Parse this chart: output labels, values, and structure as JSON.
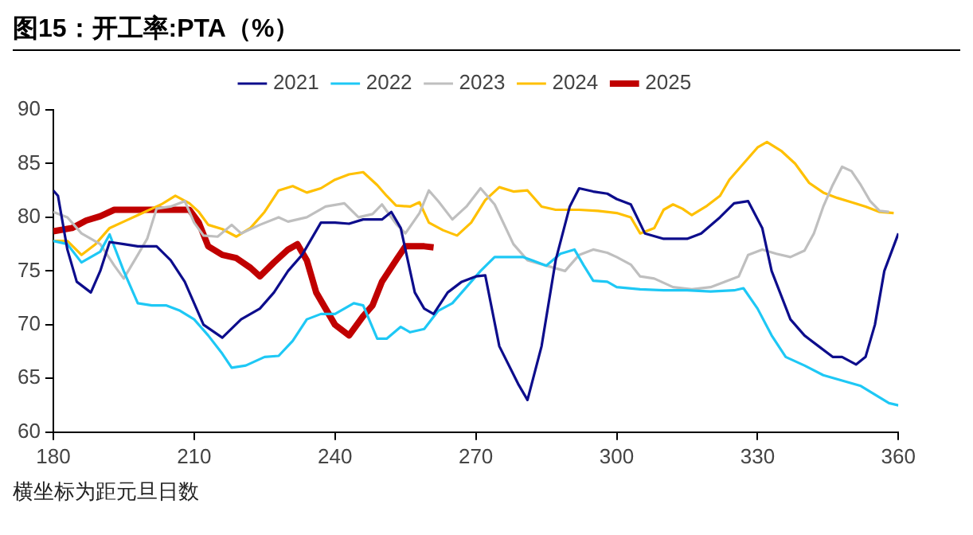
{
  "chart_data": {
    "type": "line",
    "title": "图15：开工率:PTA（%）",
    "annotations": [
      "横坐标为距元旦日数"
    ],
    "xlim": [
      180,
      360
    ],
    "xticks": [
      180,
      210,
      240,
      270,
      300,
      330,
      360
    ],
    "ylim": [
      60,
      90
    ],
    "yticks": [
      60,
      65,
      70,
      75,
      80,
      85,
      90
    ],
    "grid": false,
    "legend": "top",
    "marker": "none",
    "line_style": "solid",
    "series": [
      {
        "name": "2021",
        "color": "#0d0d8c",
        "x": [
          180,
          181,
          183,
          185,
          188,
          190,
          192,
          195,
          198,
          202,
          205,
          208,
          212,
          216,
          220,
          224,
          227,
          230,
          233,
          237,
          240,
          243,
          246,
          250,
          252,
          254,
          257,
          259,
          261,
          264,
          267,
          270,
          272,
          275,
          279,
          281,
          284,
          287,
          290,
          292,
          295,
          298,
          300,
          303,
          306,
          310,
          315,
          318,
          322,
          325,
          328,
          331,
          333,
          337,
          340,
          343,
          346,
          348,
          351,
          353,
          355,
          357,
          360
        ],
        "values": [
          82.5,
          82,
          77,
          74,
          73,
          75,
          77.7,
          77.5,
          77.3,
          77.3,
          76,
          74,
          70,
          68.8,
          70.5,
          71.5,
          73,
          75,
          76.5,
          79.5,
          79.5,
          79.4,
          79.8,
          79.8,
          80.5,
          79,
          73,
          71.5,
          71,
          73,
          74,
          74.5,
          74.6,
          68,
          64.5,
          63,
          68,
          76,
          81,
          82.7,
          82.4,
          82.2,
          81.7,
          81.2,
          78.5,
          78,
          78,
          78.5,
          80,
          81.3,
          81.5,
          79,
          75,
          70.5,
          69,
          68,
          67,
          67,
          66.3,
          67,
          70,
          75,
          78.5
        ]
      },
      {
        "name": "2022",
        "color": "#1ec8f5",
        "x": [
          180,
          183,
          186,
          190,
          192,
          195,
          198,
          201,
          204,
          207,
          210,
          213,
          216,
          218,
          221,
          225,
          228,
          231,
          234,
          237,
          240,
          244,
          246,
          249,
          251,
          254,
          256,
          259,
          262,
          265,
          268,
          271,
          274,
          277,
          280,
          282,
          285,
          288,
          291,
          293,
          295,
          298,
          300,
          305,
          310,
          315,
          320,
          325,
          327,
          330,
          333,
          336,
          340,
          344,
          348,
          352,
          355,
          358,
          360
        ],
        "values": [
          77.8,
          77.5,
          75.8,
          76.8,
          78.4,
          75,
          72,
          71.8,
          71.8,
          71.3,
          70.5,
          69,
          67.3,
          66,
          66.2,
          67,
          67.1,
          68.5,
          70.5,
          71,
          71,
          72,
          71.8,
          68.7,
          68.7,
          69.8,
          69.3,
          69.6,
          71.3,
          72,
          73.5,
          75,
          76.3,
          76.3,
          76.3,
          76,
          75.5,
          76.6,
          77,
          75.5,
          74.1,
          74,
          73.5,
          73.3,
          73.2,
          73.2,
          73.1,
          73.2,
          73.4,
          71.5,
          69,
          67,
          66.2,
          65.3,
          64.8,
          64.3,
          63.5,
          62.7,
          62.5
        ]
      },
      {
        "name": "2023",
        "color": "#bfbfbf",
        "x": [
          180,
          183,
          186,
          190,
          193,
          195,
          198,
          200,
          202,
          205,
          208,
          210,
          212,
          215,
          218,
          220,
          224,
          228,
          230,
          234,
          238,
          242,
          245,
          248,
          250,
          253,
          255,
          258,
          260,
          262,
          265,
          268,
          271,
          274,
          278,
          281,
          285,
          289,
          292,
          295,
          298,
          300,
          303,
          305,
          308,
          312,
          316,
          320,
          323,
          326,
          328,
          331,
          334,
          337,
          340,
          342,
          344,
          346,
          348,
          350,
          352,
          354,
          356,
          358
        ],
        "values": [
          80.5,
          80,
          78.5,
          77.5,
          75.5,
          74.3,
          76.5,
          78,
          80.8,
          81,
          81.5,
          79.5,
          78.3,
          78.2,
          79.3,
          78.5,
          79.3,
          80,
          79.6,
          80,
          81,
          81.3,
          80,
          80.3,
          81.2,
          79.4,
          78.5,
          80.4,
          82.5,
          81.5,
          79.8,
          81,
          82.7,
          81.2,
          77.5,
          76,
          75.5,
          75,
          76.5,
          77,
          76.7,
          76.3,
          75.6,
          74.5,
          74.3,
          73.5,
          73.3,
          73.5,
          74,
          74.5,
          76.5,
          77,
          76.6,
          76.3,
          76.9,
          78.5,
          81,
          83,
          84.7,
          84.3,
          83,
          81.5,
          80.6,
          80.5
        ]
      },
      {
        "name": "2024",
        "color": "#ffc000",
        "x": [
          180,
          183,
          186,
          189,
          192,
          195,
          198,
          201,
          203,
          206,
          209,
          211,
          213,
          216,
          219,
          222,
          225,
          228,
          231,
          234,
          237,
          240,
          243,
          246,
          249,
          251,
          253,
          256,
          258,
          260,
          263,
          266,
          269,
          272,
          275,
          278,
          281,
          284,
          287,
          292,
          296,
          300,
          303,
          305,
          308,
          310,
          312,
          314,
          316,
          319,
          322,
          324,
          327,
          330,
          332,
          335,
          338,
          341,
          344,
          347,
          350,
          353,
          356,
          359
        ],
        "values": [
          77.8,
          77.8,
          76.5,
          77.5,
          79,
          79.6,
          80.2,
          80.8,
          81.2,
          82,
          81.3,
          80.5,
          79.3,
          78.9,
          78.2,
          79,
          80.5,
          82.5,
          82.9,
          82.3,
          82.7,
          83.5,
          84,
          84.2,
          83,
          82,
          81.1,
          81,
          81.4,
          79.5,
          78.8,
          78.3,
          79.5,
          81.6,
          82.8,
          82.4,
          82.5,
          81,
          80.7,
          80.7,
          80.6,
          80.4,
          80,
          78.5,
          79,
          80.7,
          81.2,
          80.8,
          80.2,
          81,
          82,
          83.5,
          85,
          86.5,
          87,
          86.2,
          85,
          83.2,
          82.3,
          81.8,
          81.4,
          81,
          80.5,
          80.4
        ]
      },
      {
        "name": "2025",
        "color": "#c00000",
        "x": [
          180,
          184,
          187,
          190,
          193,
          196,
          200,
          205,
          209,
          211,
          213,
          216,
          219,
          222,
          224,
          227,
          230,
          232,
          234,
          236,
          238,
          240,
          243,
          246,
          248,
          250,
          253,
          255,
          259,
          261
        ],
        "values": [
          78.7,
          79,
          79.7,
          80.1,
          80.7,
          80.7,
          80.7,
          80.7,
          80.7,
          79.5,
          77.3,
          76.5,
          76.2,
          75.3,
          74.5,
          75.8,
          77,
          77.5,
          76,
          73,
          71.5,
          70,
          69,
          70.8,
          71.8,
          74,
          76,
          77.3,
          77.3,
          77.2
        ]
      }
    ]
  }
}
